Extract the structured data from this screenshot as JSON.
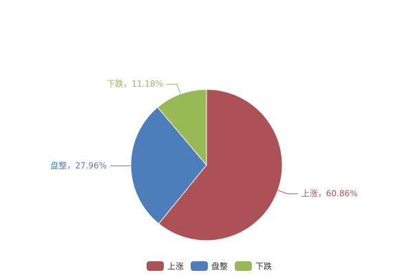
{
  "chart_data": {
    "type": "pie",
    "categories": [
      "上涨",
      "盘整",
      "下跌"
    ],
    "values": [
      60.86,
      27.96,
      11.18
    ],
    "value_labels": [
      "上涨，60.86%",
      "盘整，27.96%",
      "下跌，11.18%"
    ],
    "colors": [
      "#ac5257",
      "#4e7dbb",
      "#98b954"
    ],
    "legend": "bottom"
  }
}
